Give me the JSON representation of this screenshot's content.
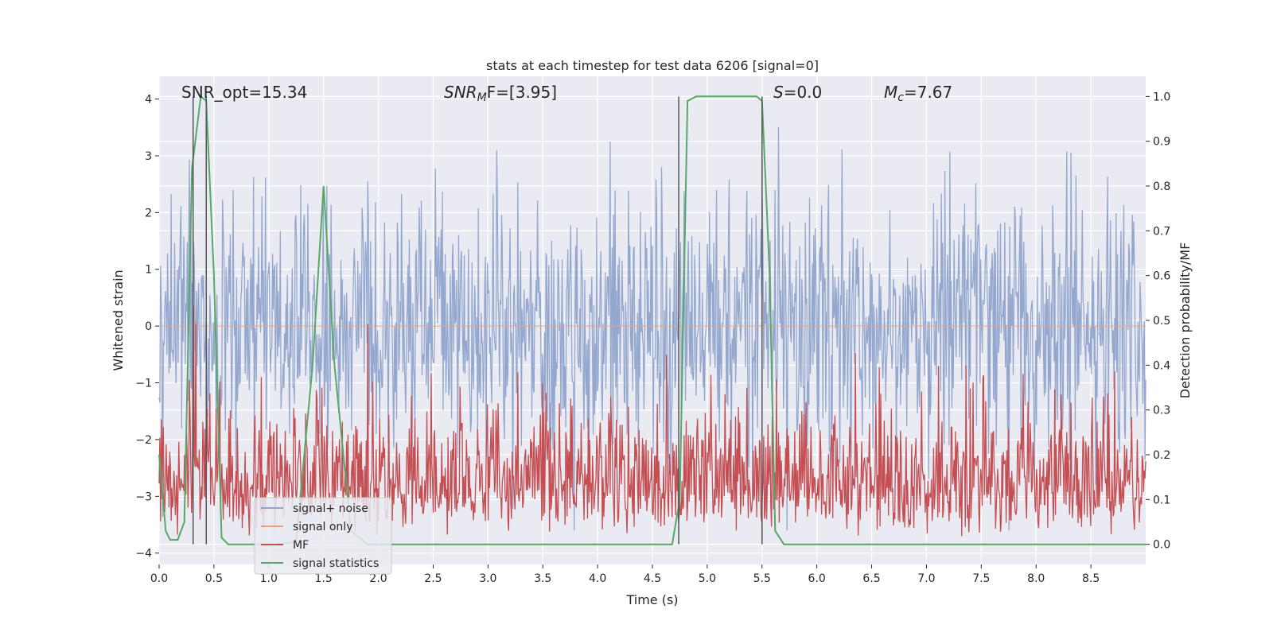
{
  "chart_data": {
    "type": "line",
    "title": "stats at each timestep for test data 6206 [signal=0]",
    "xlabel": "Time (s)",
    "ylabel": "Whitened strain",
    "y2label": "Detection probability/MF",
    "xlim": [
      0.0,
      9.0
    ],
    "ylim": [
      -4.2,
      4.4
    ],
    "y2lim": [
      -0.045,
      1.045
    ],
    "xticks": [
      "0.0",
      "0.5",
      "1.0",
      "1.5",
      "2.0",
      "2.5",
      "3.0",
      "3.5",
      "4.0",
      "4.5",
      "5.0",
      "5.5",
      "6.0",
      "6.5",
      "7.0",
      "7.5",
      "8.0",
      "8.5"
    ],
    "yticks": [
      "4",
      "3",
      "2",
      "1",
      "0",
      "−1",
      "−2",
      "−3",
      "−4"
    ],
    "y2ticks": [
      "1.0",
      "0.9",
      "0.8",
      "0.7",
      "0.6",
      "0.5",
      "0.4",
      "0.3",
      "0.2",
      "0.1",
      "0.0"
    ],
    "grid": true,
    "legend_position": "lower-left",
    "colors": {
      "noise": "#8fa4cc",
      "signal": "#e8a27f",
      "mf": "#c44e52",
      "stats": "#55a868",
      "vline": "#555555",
      "axes_bg": "#eaeaf2",
      "grid": "#ffffff"
    },
    "annotations": {
      "snr_opt": "SNR_opt=15.34",
      "snr_mf_prefix": "SNR",
      "snr_mf_sub": "M",
      "snr_mf_suffix": "F=[3.95]",
      "s_value_prefix": "S",
      "s_value_suffix": "=0.0",
      "mc_prefix": "M",
      "mc_sub": "c",
      "mc_suffix": "=7.67"
    },
    "series": [
      {
        "name": "signal+ noise",
        "summary": "whitened noise, amplitude roughly ±3.5, dense"
      },
      {
        "name": "signal only",
        "summary": "flat near zero"
      },
      {
        "name": "MF",
        "summary": "matched filter output, 0.0–0.6 on right axis",
        "y2_range": [
          0.0,
          0.6
        ]
      },
      {
        "name": "signal statistics",
        "axis": "right",
        "x": [
          0.0,
          0.06,
          0.1,
          0.17,
          0.23,
          0.3,
          0.38,
          0.43,
          0.5,
          0.57,
          0.63,
          0.85,
          1.05,
          1.25,
          1.4,
          1.5,
          1.6,
          1.75,
          1.9,
          2.1,
          3.0,
          4.0,
          4.68,
          4.75,
          4.82,
          4.9,
          5.0,
          5.2,
          5.45,
          5.5,
          5.57,
          5.62,
          5.7,
          6.5,
          7.5,
          8.5,
          9.0
        ],
        "y": [
          0.2,
          0.03,
          0.01,
          0.01,
          0.05,
          0.84,
          1.0,
          0.99,
          0.6,
          0.015,
          0.0,
          0.0,
          0.0,
          0.005,
          0.4,
          0.8,
          0.4,
          0.03,
          0.0,
          0.0,
          0.0,
          0.0,
          0.0,
          0.1,
          0.99,
          1.0,
          1.0,
          1.0,
          1.0,
          0.99,
          0.6,
          0.03,
          0.0,
          0.0,
          0.0,
          0.0,
          0.0
        ]
      }
    ],
    "vlines_x": [
      0.31,
      0.43,
      4.74,
      5.5
    ],
    "legend": {
      "noise_label": "signal+ noise",
      "signal_label": "signal only",
      "mf_label": "MF",
      "stats_label": "signal statistics"
    }
  }
}
